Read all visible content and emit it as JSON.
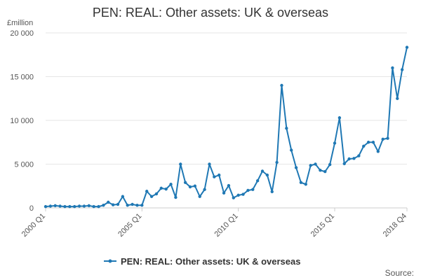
{
  "chart_data": {
    "type": "line",
    "title": "PEN: REAL: Other assets: UK & overseas",
    "ylabel": "£million",
    "xlabel": "",
    "ylim": [
      0,
      20000
    ],
    "yticks": [
      0,
      5000,
      10000,
      15000,
      20000
    ],
    "ytick_labels": [
      "0",
      "5 000",
      "10 000",
      "15 000",
      "20 000"
    ],
    "xtick_labels": [
      "2000 Q1",
      "2005 Q1",
      "2010 Q1",
      "2015 Q1",
      "2018 Q4"
    ],
    "xtick_index": [
      0,
      20,
      40,
      60,
      75
    ],
    "grid": true,
    "legend_position": "bottom",
    "series": [
      {
        "name": "PEN: REAL: Other assets: UK & overseas",
        "color": "#1f78b4",
        "values": [
          150,
          200,
          250,
          200,
          150,
          150,
          150,
          200,
          200,
          250,
          150,
          150,
          300,
          650,
          350,
          400,
          1300,
          300,
          400,
          300,
          300,
          1900,
          1300,
          1600,
          2250,
          2150,
          2700,
          1200,
          5000,
          2900,
          2400,
          2500,
          1300,
          2100,
          5000,
          3550,
          3750,
          1700,
          2550,
          1150,
          1450,
          1550,
          2000,
          2100,
          3100,
          4200,
          3750,
          1850,
          5200,
          14000,
          9100,
          6600,
          4600,
          2900,
          2700,
          4850,
          5000,
          4300,
          4150,
          4950,
          7400,
          10300,
          5050,
          5600,
          5650,
          5950,
          7050,
          7500,
          7500,
          6450,
          7850,
          7950,
          16000,
          12500,
          15800,
          18350
        ]
      }
    ]
  },
  "footer": {
    "source_label": "Source:"
  }
}
